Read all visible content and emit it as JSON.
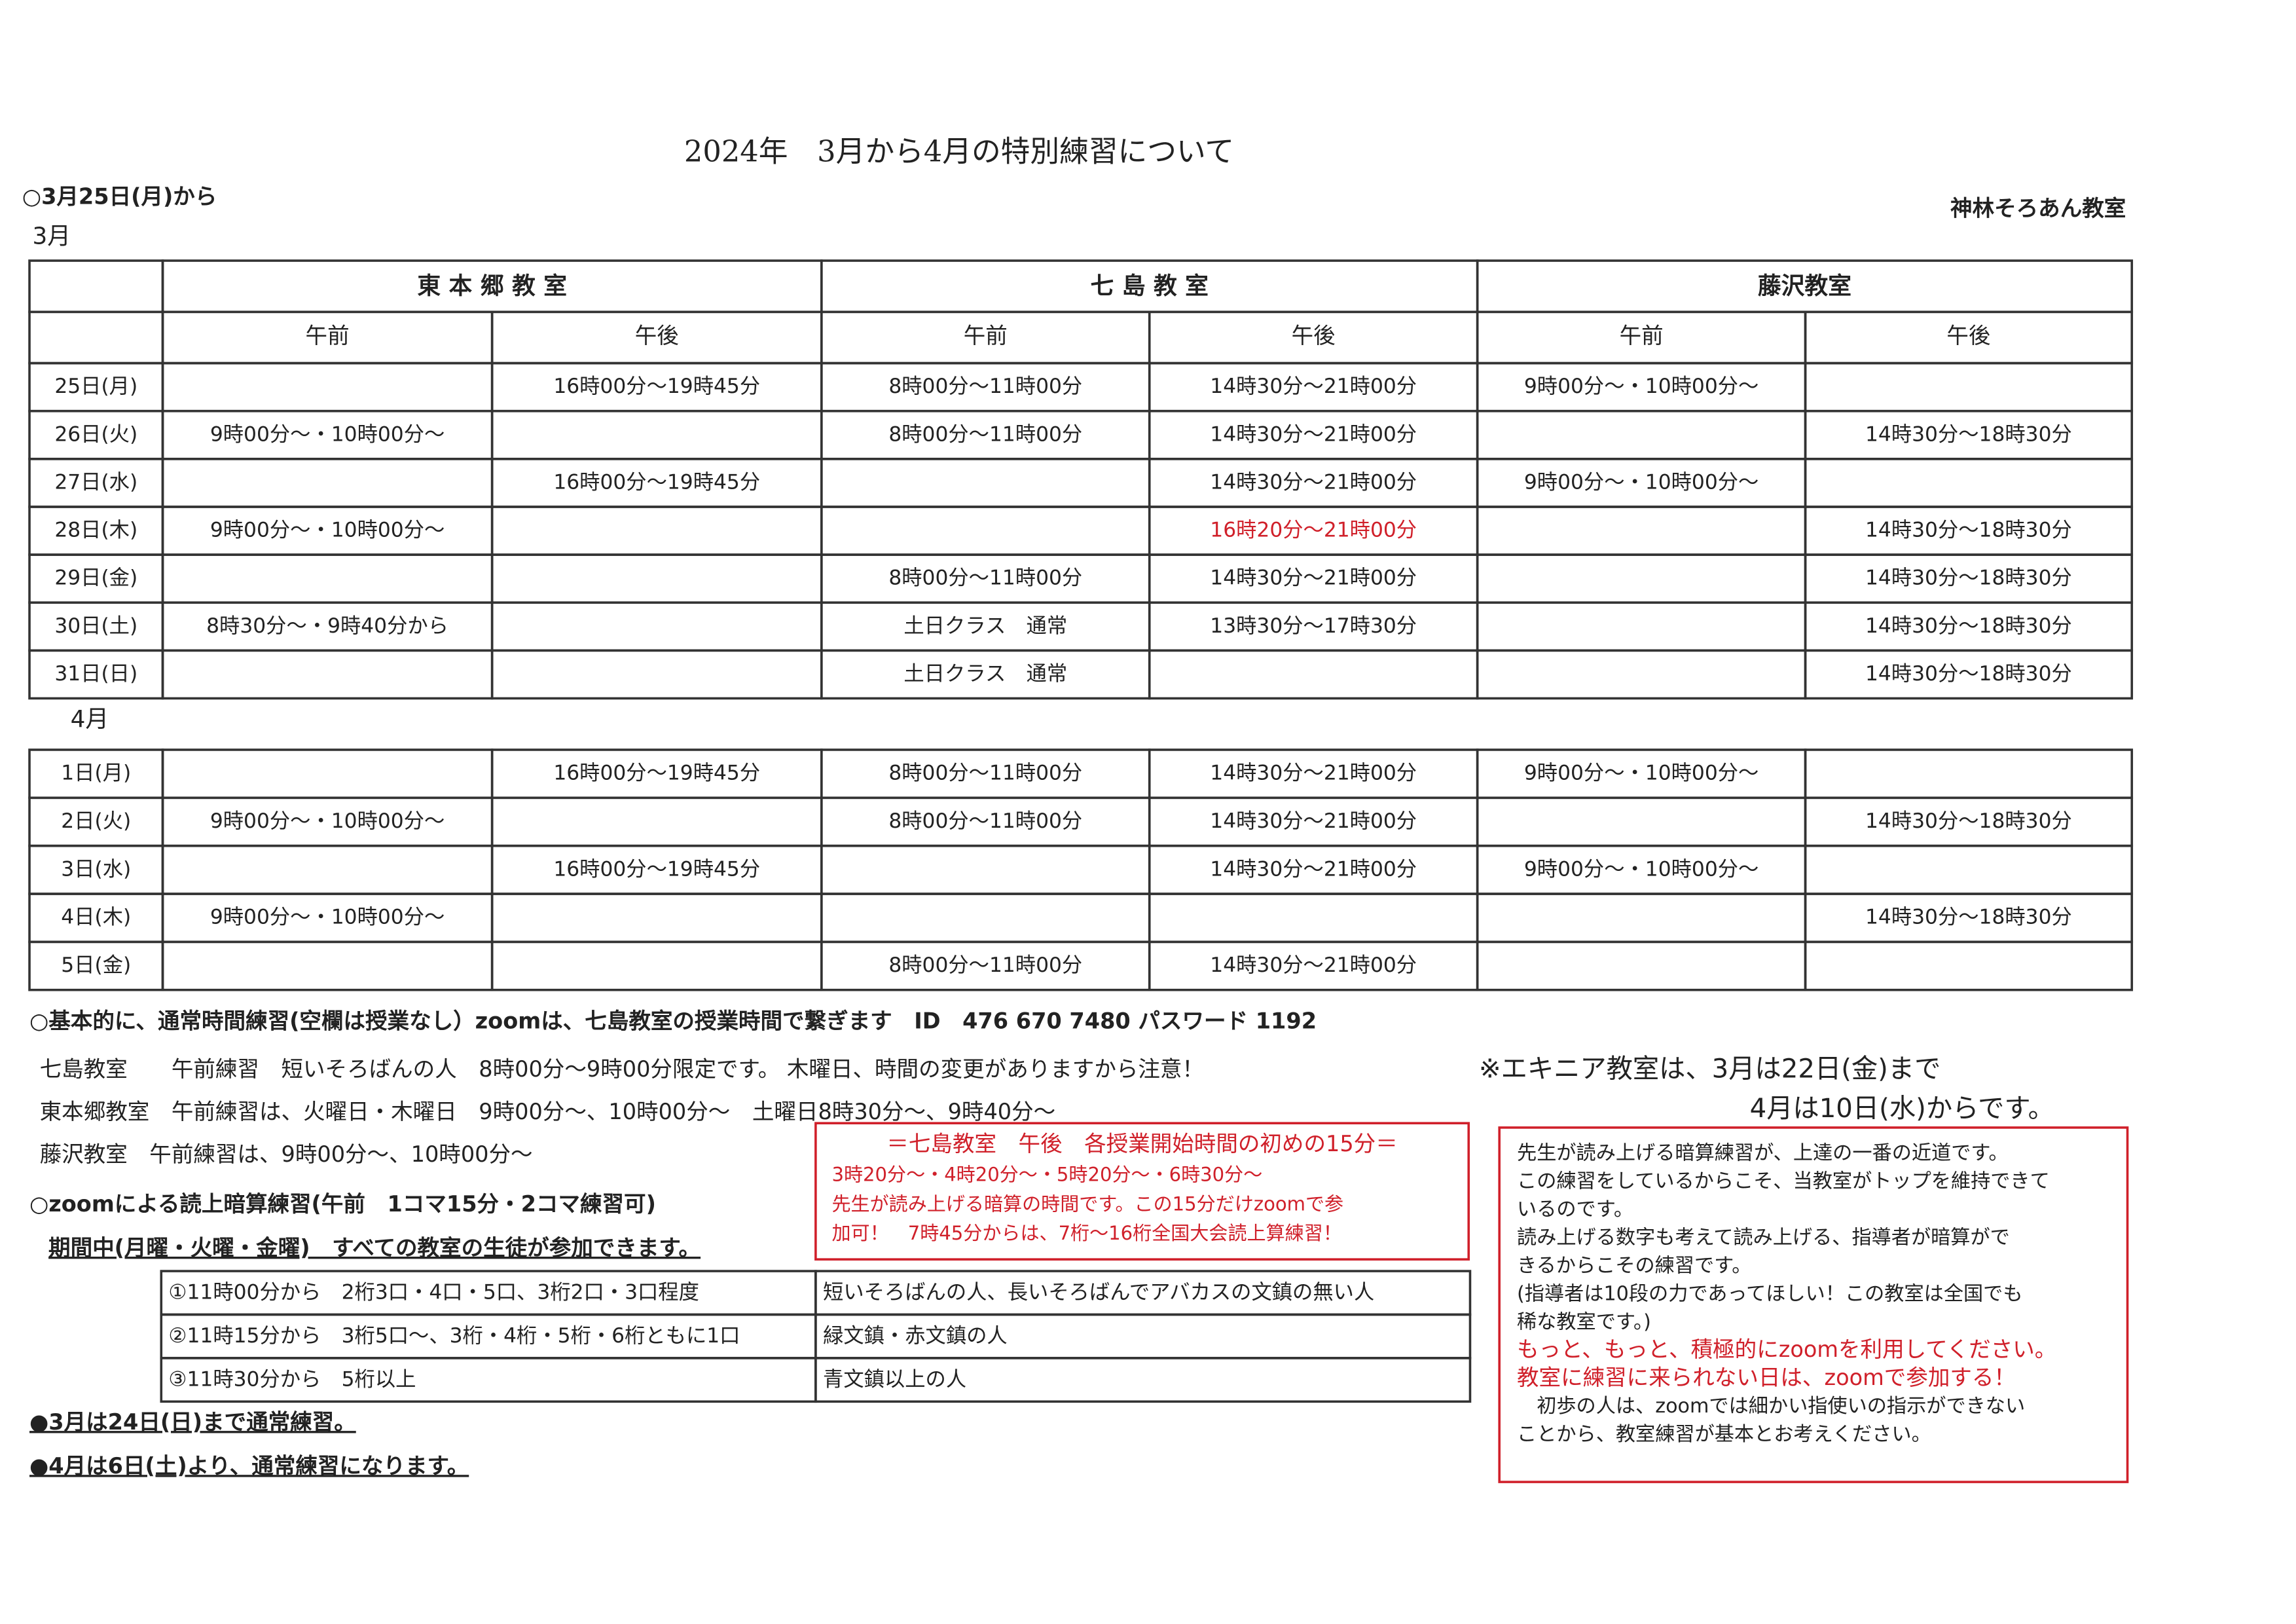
{
  "header": {
    "title": "2024年　3月から4月の特別練習について",
    "start": "○3月25日(月)から",
    "org": "神林そろあん教室"
  },
  "march": {
    "label": "3月",
    "classrooms": [
      "東 本 郷 教 室",
      "七 島 教 室",
      "藤沢教室"
    ],
    "periods": [
      "午前",
      "午後",
      "午前",
      "午後",
      "午前",
      "午後"
    ],
    "rows": [
      {
        "day": "25日(月)",
        "cells": [
          null,
          "16時00分～19時45分",
          "8時00分～11時00分",
          "14時30分～21時00分",
          "9時00分～・10時00分～",
          null
        ]
      },
      {
        "day": "26日(火)",
        "cells": [
          "9時00分～・10時00分～",
          null,
          "8時00分～11時00分",
          "14時30分～21時00分",
          null,
          "14時30分～18時30分"
        ]
      },
      {
        "day": "27日(水)",
        "cells": [
          null,
          "16時00分～19時45分",
          null,
          "14時30分～21時00分",
          "9時00分～・10時00分～",
          null
        ]
      },
      {
        "day": "28日(木)",
        "cells": [
          "9時00分～・10時00分～",
          null,
          null,
          {
            "text": "16時20分～21時00分",
            "color": "#d0202a"
          },
          null,
          "14時30分～18時30分"
        ]
      },
      {
        "day": "29日(金)",
        "cells": [
          null,
          null,
          "8時00分～11時00分",
          "14時30分～21時00分",
          null,
          "14時30分～18時30分"
        ]
      },
      {
        "day": "30日(土)",
        "cells": [
          "8時30分～・9時40分から",
          null,
          "土日クラス　通常",
          "13時30分～17時30分",
          null,
          "14時30分～18時30分"
        ]
      },
      {
        "day": "31日(日)",
        "cells": [
          null,
          null,
          "土日クラス　通常",
          null,
          null,
          "14時30分～18時30分"
        ]
      }
    ]
  },
  "april": {
    "label": "4月",
    "rows": [
      {
        "day": "1日(月)",
        "cells": [
          null,
          "16時00分～19時45分",
          "8時00分～11時00分",
          "14時30分～21時00分",
          "9時00分～・10時00分～",
          null
        ]
      },
      {
        "day": "2日(火)",
        "cells": [
          "9時00分～・10時00分～",
          null,
          "8時00分～11時00分",
          "14時30分～21時00分",
          null,
          "14時30分～18時30分"
        ]
      },
      {
        "day": "3日(水)",
        "cells": [
          null,
          "16時00分～19時45分",
          null,
          "14時30分～21時00分",
          "9時00分～・10時00分～",
          null
        ]
      },
      {
        "day": "4日(木)",
        "cells": [
          "9時00分～・10時00分～",
          null,
          null,
          null,
          null,
          "14時30分～18時30分"
        ]
      },
      {
        "day": "5日(金)",
        "cells": [
          null,
          null,
          "8時00分～11時00分",
          "14時30分～21時00分",
          null,
          null
        ]
      }
    ]
  },
  "notes": {
    "basic": "○基本的に、通常時間練習(空欄は授業なし）zoomは、七島教室の授業時間で繋ぎます　ID　476 670 7480 パスワード 1192",
    "lines": [
      "七島教室　　午前練習　短いそろばんの人　8時00分～9時00分限定です。 木曜日、時間の変更がありますから注意！",
      "東本郷教室　午前練習は、火曜日・木曜日　9時00分～、10時00分～　土曜日8時30分～、9時40分～",
      "藤沢教室　午前練習は、9時00分～、10時00分～"
    ],
    "zoom": "○zoomによる読上暗算練習(午前　1コマ15分・2コマ練習可)",
    "period": "期間中(月曜・火曜・金曜)　すべての教室の生徒が参加できます。"
  },
  "zoom_table": {
    "rows": [
      [
        "①11時00分から　2桁3口・4口・5口、3桁2口・3口程度",
        "短いそろばんの人、長いそろばんでアバカスの文鎮の無い人"
      ],
      [
        "②11時15分から　3桁5口～、3桁・4桁・5桁・6桁ともに1口",
        "緑文鎮・赤文鎮の人"
      ],
      [
        "③11時30分から　5桁以上",
        "青文鎮以上の人"
      ]
    ]
  },
  "footer": [
    "●3月は24日(日)まで通常練習。",
    "●4月は6日(土)より、通常練習になります。"
  ],
  "red_box": {
    "title": "＝七島教室　午後　各授業開始時間の初めの15分＝",
    "lines": [
      "3時20分～・4時20分～・5時20分～・6時30分～",
      "先生が読み上げる暗算の時間です。この15分だけzoomで参",
      "加可！　7時45分からは、7桁～16桁全国大会読上算練習！"
    ]
  },
  "ekinia": [
    "※エキニア教室は、3月は22日(金)まで",
    "4月は10日(水)からです。"
  ],
  "message_box": {
    "lines": [
      {
        "text": "先生が読み上げる暗算練習が、上達の一番の近道です。"
      },
      {
        "text": "この練習をしているからこそ、当教室がトップを維持できて"
      },
      {
        "text": "いるのです。"
      },
      {
        "text": "読み上げる数字も考えて読み上げる、指導者が暗算がで"
      },
      {
        "text": "きるからこその練習です。"
      },
      {
        "text": "(指導者は10段の力であってほしい！この教室は全国でも"
      },
      {
        "text": "稀な教室です。)"
      },
      {
        "text": "もっと、もっと、積極的にzoomを利用してください。",
        "color": "#d0202a"
      },
      {
        "text": "教室に練習に来られない日は、zoomで参加する！",
        "color": "#d0202a"
      },
      {
        "text": "　初歩の人は、zoomでは細かい指使いの指示ができない"
      },
      {
        "text": "ことから、教室練習が基本とお考えください。"
      }
    ]
  }
}
